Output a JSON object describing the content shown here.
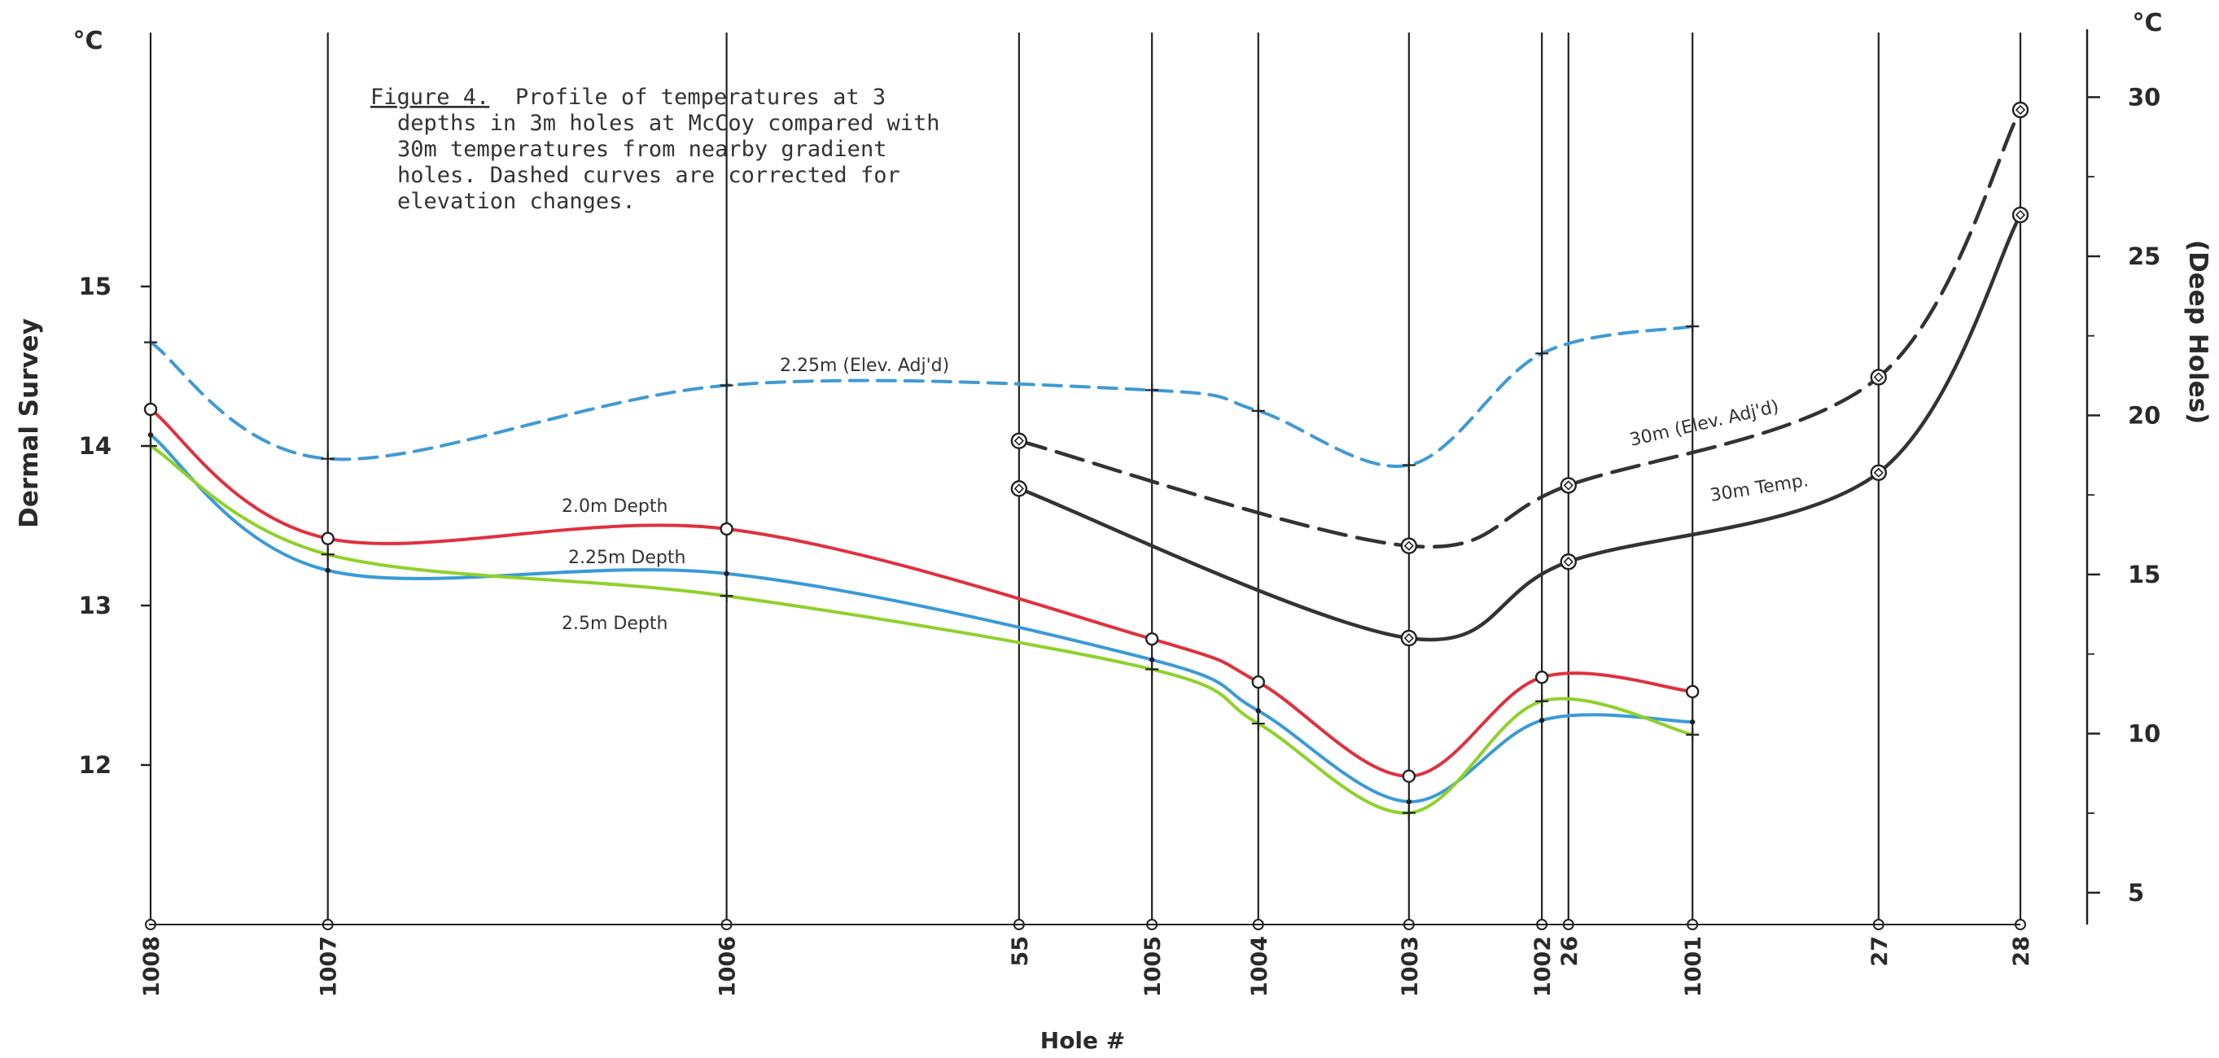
{
  "caption": {
    "fig_label": "Figure 4.",
    "line1": "Profile of temperatures at 3",
    "line2": "depths in 3m holes at McCoy compared with",
    "line3": "30m temperatures from nearby gradient",
    "line4": "holes.  Dashed curves are corrected for",
    "line5": "elevation changes."
  },
  "chart_data": {
    "type": "line",
    "title": "",
    "xlabel": "Hole #",
    "ylabel_left": "Dermal Survey",
    "ylabel_right": "(Deep Holes)",
    "unit_left": "°C",
    "unit_right": "°C",
    "y_left_ticks": [
      "12",
      "13",
      "14",
      "15"
    ],
    "y_left_range": [
      11,
      16
    ],
    "y_right_ticks": [
      "5",
      "10",
      "15",
      "20",
      "25",
      "30"
    ],
    "y_right_range": [
      4,
      32
    ],
    "holes": [
      "1008",
      "1007",
      "1006",
      "55",
      "1005",
      "1004",
      "1003",
      "1002",
      "26",
      "1001",
      "27",
      "28"
    ],
    "hole_positions": [
      0,
      1,
      3.25,
      4.9,
      5.65,
      6.25,
      7.1,
      7.85,
      8.0,
      8.7,
      9.75,
      10.55
    ],
    "series": [
      {
        "name": "2.25m (Elev. Adj'd)",
        "axis": "left",
        "dashed": true,
        "color": "#3f9ad6",
        "marker": "+",
        "holes": [
          "1008",
          "1007",
          "1006",
          "1005",
          "1004",
          "1003",
          "1002",
          "1001"
        ],
        "values": [
          14.65,
          13.92,
          14.38,
          14.35,
          14.22,
          13.88,
          14.58,
          14.75
        ]
      },
      {
        "name": "2.0m Depth",
        "axis": "left",
        "dashed": false,
        "color": "#e0303f",
        "marker": "o",
        "holes": [
          "1008",
          "1007",
          "1006",
          "1005",
          "1004",
          "1003",
          "1002",
          "1001"
        ],
        "values": [
          14.23,
          13.42,
          13.48,
          12.79,
          12.52,
          11.93,
          12.55,
          12.46
        ]
      },
      {
        "name": "2.25m Depth",
        "axis": "left",
        "dashed": false,
        "color": "#3a9ad8",
        "marker": "-",
        "holes": [
          "1008",
          "1007",
          "1006",
          "1005",
          "1004",
          "1003",
          "1002",
          "1001"
        ],
        "values": [
          14.07,
          13.22,
          13.2,
          12.66,
          12.34,
          11.77,
          12.28,
          12.27
        ]
      },
      {
        "name": "2.5m Depth",
        "axis": "left",
        "dashed": false,
        "color": "#8fd12a",
        "marker": "+",
        "holes": [
          "1008",
          "1007",
          "1006",
          "1005",
          "1004",
          "1003",
          "1002",
          "1001"
        ],
        "values": [
          14.0,
          13.32,
          13.06,
          12.6,
          12.26,
          11.7,
          12.4,
          12.19
        ]
      },
      {
        "name": "30m (Elev. Adj'd)",
        "axis": "right",
        "dashed": true,
        "color": "#333333",
        "marker": "diamond",
        "holes": [
          "55",
          "1003",
          "26",
          "27",
          "28"
        ],
        "values": [
          19.2,
          15.9,
          17.8,
          21.2,
          29.6
        ]
      },
      {
        "name": "30m Temp.",
        "axis": "right",
        "dashed": false,
        "color": "#333333",
        "marker": "diamond",
        "holes": [
          "55",
          "1003",
          "26",
          "27",
          "28"
        ],
        "values": [
          17.7,
          13.0,
          15.4,
          18.2,
          26.3
        ]
      }
    ]
  }
}
